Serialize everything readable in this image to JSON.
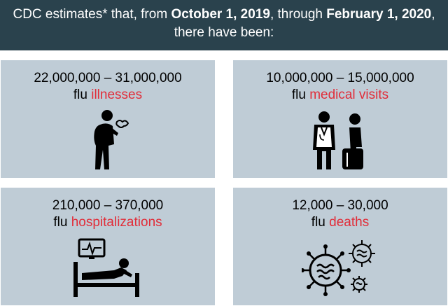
{
  "header": {
    "prefix": "CDC estimates* that, from ",
    "start_date": "October 1, 2019",
    "middle": ", through ",
    "end_date": "February 1, 2020",
    "suffix": ",",
    "line2": "there have been:"
  },
  "colors": {
    "header_bg": "#2a424d",
    "card_bg": "#bfccd6",
    "accent_red": "#e12d39"
  },
  "cards": [
    {
      "range": "22,000,000 – 31,000,000",
      "prefix": "flu ",
      "highlight": "illnesses",
      "icon": "sick-person-icon"
    },
    {
      "range": "10,000,000 – 15,000,000",
      "prefix": "flu ",
      "highlight": "medical visits",
      "icon": "doctor-patient-icon"
    },
    {
      "range": "210,000 – 370,000",
      "prefix": "flu ",
      "highlight": "hospitalizations",
      "icon": "hospital-bed-icon"
    },
    {
      "range": "12,000 – 30,000",
      "prefix": "flu ",
      "highlight": "deaths",
      "icon": "virus-icon"
    }
  ]
}
